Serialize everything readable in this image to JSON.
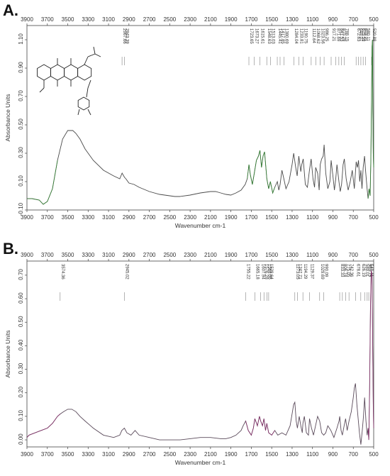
{
  "figure": {
    "panel_a_label": "A.",
    "panel_b_label": "B."
  },
  "chart_data": [
    {
      "type": "line",
      "panel": "A.",
      "xlabel": "Wavenumber cm-1",
      "ylabel": "Absorbance Units",
      "xlim": [
        3900,
        500
      ],
      "x_reversed": true,
      "x_ticks": [
        3900,
        3700,
        3500,
        3300,
        3100,
        2900,
        2700,
        2500,
        2300,
        2100,
        1900,
        1700,
        1500,
        1300,
        1100,
        900,
        700,
        500
      ],
      "ylim": [
        -0.1,
        1.2
      ],
      "y_ticks": [
        -0.1,
        0.1,
        0.3,
        0.5,
        0.7,
        0.9,
        1.1
      ],
      "y_tick_labels": [
        "-0.10",
        "0.10",
        "0.30",
        "0.50",
        "0.70",
        "0.90",
        "1.10"
      ],
      "grid": false,
      "line_color": "#4a4a4a",
      "noise_color": "#2e8b2e",
      "has_structure_inset": true,
      "peak_labels": [
        "2967.66",
        "2943.39",
        "1723.65",
        "1673.27",
        "1615.61",
        "1548.63",
        "1513.03",
        "1445.41",
        "1417.85",
        "1380.69",
        "1284.04",
        "1233.81",
        "1190.75",
        "1112.64",
        "1068.62",
        "1023.56",
        "986.25",
        "917.21",
        "871.69",
        "841.53",
        "815.29",
        "788.15",
        "672.63",
        "649.07",
        "625.59",
        "603.21",
        "580.11",
        "520.88"
      ],
      "peak_positions": [
        2967.66,
        2943.39,
        1723.65,
        1673.27,
        1615.61,
        1548.63,
        1513.03,
        1445.41,
        1417.85,
        1380.69,
        1284.04,
        1233.81,
        1190.75,
        1112.64,
        1068.62,
        1023.56,
        986.25,
        917.21,
        871.69,
        841.53,
        815.29,
        788.15,
        672.63,
        649.07,
        625.59,
        603.21,
        580.11,
        520.88
      ],
      "x": [
        3950,
        3850,
        3780,
        3740,
        3700,
        3650,
        3600,
        3550,
        3500,
        3450,
        3420,
        3380,
        3330,
        3250,
        3150,
        3050,
        2990,
        2967,
        2943,
        2930,
        2900,
        2850,
        2800,
        2700,
        2600,
        2500,
        2450,
        2400,
        2300,
        2200,
        2100,
        2050,
        2000,
        1950,
        1900,
        1850,
        1800,
        1760,
        1740,
        1723,
        1710,
        1690,
        1673,
        1650,
        1630,
        1615,
        1600,
        1585,
        1570,
        1548,
        1530,
        1513,
        1490,
        1470,
        1445,
        1430,
        1418,
        1400,
        1381,
        1360,
        1330,
        1300,
        1284,
        1265,
        1250,
        1234,
        1215,
        1205,
        1191,
        1170,
        1150,
        1130,
        1113,
        1095,
        1080,
        1069,
        1050,
        1035,
        1024,
        1010,
        995,
        986,
        970,
        950,
        930,
        917,
        900,
        885,
        872,
        860,
        841,
        828,
        815,
        800,
        788,
        770,
        750,
        730,
        710,
        690,
        672,
        660,
        649,
        637,
        626,
        615,
        603,
        590,
        580,
        565,
        555,
        545,
        535,
        528,
        521,
        516,
        512,
        508,
        504,
        500
      ],
      "values": [
        -0.02,
        -0.02,
        -0.03,
        -0.06,
        -0.04,
        0.05,
        0.25,
        0.4,
        0.46,
        0.46,
        0.44,
        0.4,
        0.33,
        0.25,
        0.18,
        0.14,
        0.12,
        0.16,
        0.13,
        0.12,
        0.09,
        0.08,
        0.06,
        0.03,
        0.01,
        0.0,
        -0.005,
        -0.005,
        0.005,
        0.02,
        0.03,
        0.03,
        0.02,
        0.01,
        0.005,
        0.02,
        0.04,
        0.08,
        0.12,
        0.22,
        0.15,
        0.08,
        0.15,
        0.25,
        0.28,
        0.32,
        0.2,
        0.28,
        0.31,
        0.12,
        0.05,
        0.1,
        0.02,
        0.06,
        0.1,
        0.04,
        0.08,
        0.18,
        0.12,
        0.05,
        0.1,
        0.22,
        0.3,
        0.2,
        0.14,
        0.28,
        0.17,
        0.22,
        0.26,
        0.08,
        0.06,
        0.18,
        0.26,
        0.12,
        0.06,
        0.2,
        0.16,
        0.04,
        0.22,
        0.26,
        0.28,
        0.36,
        0.16,
        0.05,
        0.1,
        0.25,
        0.14,
        0.04,
        0.12,
        0.22,
        0.1,
        0.03,
        0.08,
        0.22,
        0.26,
        0.12,
        0.04,
        0.1,
        0.18,
        0.05,
        0.24,
        0.2,
        0.25,
        0.1,
        0.18,
        0.05,
        0.2,
        0.28,
        0.18,
        0.05,
        -0.02,
        0.05,
        0.0,
        0.25,
        0.7,
        1.05,
        1.1,
        0.6,
        0.3,
        0.2
      ]
    },
    {
      "type": "line",
      "panel": "B.",
      "xlabel": "Wavenumber cm-1",
      "ylabel": "Absorbance Units",
      "xlim": [
        3900,
        500
      ],
      "x_reversed": true,
      "x_ticks": [
        3900,
        3700,
        3500,
        3300,
        3100,
        2900,
        2700,
        2500,
        2300,
        2100,
        1900,
        1700,
        1500,
        1300,
        1100,
        900,
        700,
        500
      ],
      "ylim": [
        -0.03,
        0.76
      ],
      "y_ticks": [
        0.0,
        0.1,
        0.2,
        0.3,
        0.4,
        0.5,
        0.6,
        0.7
      ],
      "y_tick_labels": [
        "0.00",
        "0.10",
        "0.20",
        "0.30",
        "0.40",
        "0.50",
        "0.60",
        "0.70"
      ],
      "grid": false,
      "line_color": "#5a4a5a",
      "noise_color": "#8b2a6b",
      "has_structure_inset": false,
      "peak_labels": [
        "3574.36",
        "2945.02",
        "1755.22",
        "1665.18",
        "1607.94",
        "1576.28",
        "1548.06",
        "1529.64",
        "1273.05",
        "1247.71",
        "1194.29",
        "1129.37",
        "1029.69",
        "990.09",
        "833.33",
        "806.74",
        "775.05",
        "742.36",
        "678.61",
        "626.19",
        "589.01",
        "563.75",
        "548.41"
      ],
      "peak_positions": [
        3574.36,
        2945.02,
        1755.22,
        1665.18,
        1607.94,
        1576.28,
        1548.06,
        1529.64,
        1273.05,
        1247.71,
        1194.29,
        1129.37,
        1029.69,
        990.09,
        833.33,
        806.74,
        775.05,
        742.36,
        678.61,
        626.19,
        589.01,
        563.75,
        548.41
      ],
      "x": [
        3950,
        3880,
        3820,
        3760,
        3700,
        3650,
        3600,
        3574,
        3540,
        3500,
        3460,
        3420,
        3380,
        3330,
        3250,
        3150,
        3050,
        2990,
        2970,
        2945,
        2920,
        2880,
        2840,
        2800,
        2700,
        2600,
        2500,
        2400,
        2300,
        2200,
        2100,
        2000,
        1950,
        1900,
        1850,
        1800,
        1780,
        1755,
        1730,
        1700,
        1680,
        1665,
        1640,
        1620,
        1608,
        1590,
        1576,
        1560,
        1548,
        1530,
        1500,
        1470,
        1440,
        1400,
        1360,
        1320,
        1300,
        1285,
        1273,
        1260,
        1248,
        1230,
        1215,
        1200,
        1194,
        1180,
        1160,
        1140,
        1129,
        1110,
        1090,
        1070,
        1050,
        1030,
        1010,
        990,
        970,
        950,
        920,
        890,
        860,
        840,
        833,
        820,
        807,
        790,
        775,
        760,
        742,
        720,
        700,
        690,
        679,
        665,
        650,
        640,
        626,
        612,
        600,
        589,
        576,
        564,
        555,
        548,
        540,
        532,
        524,
        516,
        510,
        504,
        500
      ],
      "values": [
        0.01,
        0.02,
        0.03,
        0.04,
        0.05,
        0.07,
        0.1,
        0.11,
        0.12,
        0.13,
        0.13,
        0.12,
        0.1,
        0.08,
        0.05,
        0.02,
        0.01,
        0.02,
        0.04,
        0.05,
        0.03,
        0.02,
        0.04,
        0.02,
        0.01,
        0.0,
        0.0,
        0.0,
        0.005,
        0.01,
        0.01,
        0.005,
        0.005,
        0.01,
        0.02,
        0.04,
        0.06,
        0.08,
        0.04,
        0.02,
        0.05,
        0.09,
        0.06,
        0.1,
        0.08,
        0.06,
        0.09,
        0.04,
        0.07,
        0.03,
        0.02,
        0.04,
        0.02,
        0.03,
        0.02,
        0.06,
        0.11,
        0.15,
        0.16,
        0.08,
        0.05,
        0.1,
        0.06,
        0.03,
        0.07,
        0.1,
        0.03,
        0.02,
        0.09,
        0.05,
        0.02,
        0.06,
        0.1,
        0.08,
        0.03,
        0.02,
        0.03,
        0.06,
        0.04,
        0.01,
        0.05,
        0.08,
        0.1,
        0.04,
        0.02,
        0.06,
        0.09,
        0.04,
        0.08,
        0.12,
        0.18,
        0.22,
        0.24,
        0.15,
        0.08,
        0.03,
        -0.02,
        0.04,
        0.1,
        0.18,
        0.08,
        0.02,
        0.05,
        0.0,
        0.2,
        0.55,
        0.72,
        0.7,
        0.4,
        0.15,
        0.05
      ]
    }
  ]
}
